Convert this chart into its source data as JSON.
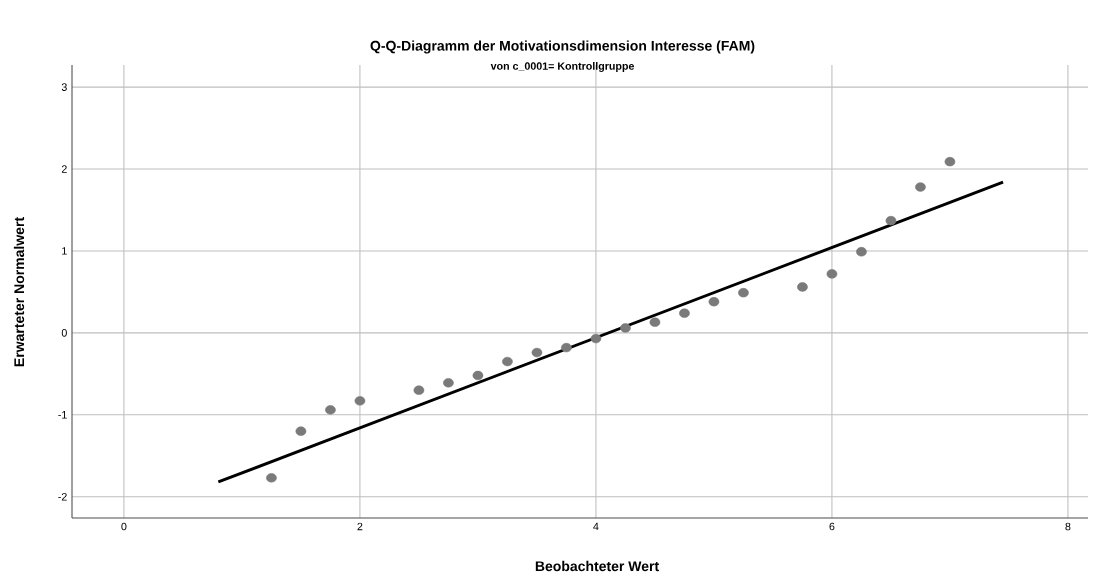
{
  "chart_data": {
    "type": "scatter",
    "title": "Q-Q-Diagramm der Motivationsdimension Interesse (FAM)",
    "subtitle": "von c_0001= Kontrollgruppe",
    "xlabel": "Beobachteter Wert",
    "ylabel": "Erwarteter Normalwert",
    "xlim": [
      -0.44,
      8.17
    ],
    "ylim": [
      -2.26,
      3.27
    ],
    "xticks": [
      0,
      2,
      4,
      6,
      8
    ],
    "yticks": [
      -2,
      -1,
      0,
      1,
      2,
      3
    ],
    "grid": true,
    "marker": "circle",
    "series": [
      {
        "color": "#7a7a7a",
        "x": [
          1.25,
          1.5,
          1.75,
          2.0,
          2.5,
          2.75,
          3.0,
          3.25,
          3.5,
          3.75,
          4.0,
          4.25,
          4.5,
          4.75,
          5.0,
          5.25,
          5.75,
          6.0,
          6.25,
          6.5,
          6.75,
          7.0
        ],
        "values": [
          -1.77,
          -1.2,
          -0.94,
          -0.83,
          -0.7,
          -0.61,
          -0.52,
          -0.35,
          -0.24,
          -0.18,
          -0.07,
          0.06,
          0.13,
          0.24,
          0.38,
          0.49,
          0.56,
          0.72,
          0.99,
          1.37,
          1.78,
          2.09
        ]
      },
      {
        "type": "line",
        "marker": "none",
        "color": "#000000",
        "x": [
          0.8,
          7.45
        ],
        "values": [
          -1.82,
          1.84
        ]
      }
    ]
  }
}
